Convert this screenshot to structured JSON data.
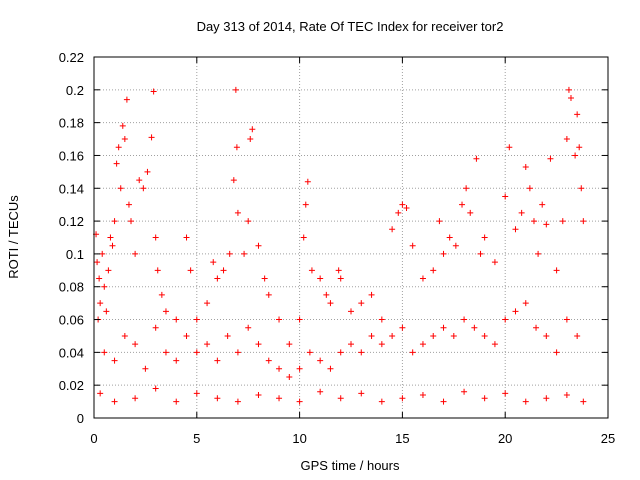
{
  "chart_data": {
    "type": "scatter",
    "title": "Day 313 of 2014, Rate Of TEC Index for receiver tor2",
    "xlabel": "GPS time / hours",
    "ylabel": "ROTI / TECUs",
    "xlim": [
      0,
      25
    ],
    "ylim": [
      0,
      0.22
    ],
    "xticks": [
      "0",
      "5",
      "10",
      "15",
      "20",
      "25"
    ],
    "yticks": [
      "0",
      "0.02",
      "0.04",
      "0.06",
      "0.08",
      "0.1",
      "0.12",
      "0.14",
      "0.16",
      "0.18",
      "0.2",
      "0.22"
    ],
    "grid": true,
    "marker": "plus",
    "color": "#ff0000",
    "series": [
      {
        "points": [
          [
            0.1,
            0.112
          ],
          [
            0.15,
            0.095
          ],
          [
            0.2,
            0.06
          ],
          [
            0.25,
            0.085
          ],
          [
            0.3,
            0.07
          ],
          [
            0.4,
            0.1
          ],
          [
            0.5,
            0.08
          ],
          [
            0.6,
            0.065
          ],
          [
            0.7,
            0.09
          ],
          [
            0.8,
            0.11
          ],
          [
            0.9,
            0.105
          ],
          [
            1.0,
            0.12
          ],
          [
            1.1,
            0.155
          ],
          [
            1.2,
            0.165
          ],
          [
            1.3,
            0.14
          ],
          [
            1.4,
            0.178
          ],
          [
            1.5,
            0.17
          ],
          [
            1.6,
            0.194
          ],
          [
            1.7,
            0.13
          ],
          [
            1.8,
            0.12
          ],
          [
            2.0,
            0.1
          ],
          [
            2.2,
            0.145
          ],
          [
            2.4,
            0.14
          ],
          [
            2.6,
            0.15
          ],
          [
            2.8,
            0.171
          ],
          [
            2.9,
            0.199
          ],
          [
            3.0,
            0.11
          ],
          [
            3.1,
            0.09
          ],
          [
            3.3,
            0.075
          ],
          [
            3.5,
            0.065
          ],
          [
            4.0,
            0.06
          ],
          [
            4.5,
            0.11
          ],
          [
            4.7,
            0.09
          ],
          [
            5.0,
            0.06
          ],
          [
            5.5,
            0.07
          ],
          [
            5.8,
            0.095
          ],
          [
            6.0,
            0.085
          ],
          [
            6.3,
            0.09
          ],
          [
            6.6,
            0.1
          ],
          [
            6.8,
            0.145
          ],
          [
            6.9,
            0.2
          ],
          [
            6.95,
            0.165
          ],
          [
            7.0,
            0.125
          ],
          [
            7.3,
            0.1
          ],
          [
            7.5,
            0.12
          ],
          [
            7.6,
            0.17
          ],
          [
            7.7,
            0.176
          ],
          [
            8.0,
            0.105
          ],
          [
            8.3,
            0.085
          ],
          [
            8.5,
            0.075
          ],
          [
            9.0,
            0.06
          ],
          [
            9.5,
            0.045
          ],
          [
            10.0,
            0.06
          ],
          [
            10.2,
            0.11
          ],
          [
            10.3,
            0.13
          ],
          [
            10.4,
            0.144
          ],
          [
            10.6,
            0.09
          ],
          [
            11.0,
            0.085
          ],
          [
            11.3,
            0.075
          ],
          [
            11.5,
            0.07
          ],
          [
            11.9,
            0.09
          ],
          [
            12.0,
            0.085
          ],
          [
            12.5,
            0.065
          ],
          [
            13.0,
            0.07
          ],
          [
            13.5,
            0.075
          ],
          [
            14.0,
            0.06
          ],
          [
            14.5,
            0.115
          ],
          [
            14.8,
            0.125
          ],
          [
            15.0,
            0.13
          ],
          [
            15.2,
            0.128
          ],
          [
            15.5,
            0.105
          ],
          [
            16.0,
            0.085
          ],
          [
            16.5,
            0.09
          ],
          [
            16.8,
            0.12
          ],
          [
            17.0,
            0.1
          ],
          [
            17.3,
            0.11
          ],
          [
            17.6,
            0.105
          ],
          [
            17.9,
            0.13
          ],
          [
            18.1,
            0.14
          ],
          [
            18.3,
            0.125
          ],
          [
            18.6,
            0.158
          ],
          [
            18.8,
            0.1
          ],
          [
            19.0,
            0.11
          ],
          [
            19.5,
            0.095
          ],
          [
            20.0,
            0.135
          ],
          [
            20.2,
            0.165
          ],
          [
            20.5,
            0.115
          ],
          [
            20.8,
            0.125
          ],
          [
            21.0,
            0.153
          ],
          [
            21.2,
            0.14
          ],
          [
            21.4,
            0.12
          ],
          [
            21.6,
            0.1
          ],
          [
            21.8,
            0.13
          ],
          [
            22.0,
            0.118
          ],
          [
            22.2,
            0.158
          ],
          [
            22.5,
            0.09
          ],
          [
            22.8,
            0.12
          ],
          [
            23.0,
            0.17
          ],
          [
            23.1,
            0.2
          ],
          [
            23.2,
            0.195
          ],
          [
            23.4,
            0.16
          ],
          [
            23.5,
            0.185
          ],
          [
            23.6,
            0.165
          ],
          [
            23.7,
            0.14
          ],
          [
            23.8,
            0.12
          ],
          [
            0.5,
            0.04
          ],
          [
            1.0,
            0.035
          ],
          [
            1.5,
            0.05
          ],
          [
            2.0,
            0.045
          ],
          [
            2.5,
            0.03
          ],
          [
            3.0,
            0.055
          ],
          [
            3.5,
            0.04
          ],
          [
            4.0,
            0.035
          ],
          [
            4.5,
            0.05
          ],
          [
            5.0,
            0.04
          ],
          [
            5.5,
            0.045
          ],
          [
            6.0,
            0.035
          ],
          [
            6.5,
            0.05
          ],
          [
            7.0,
            0.04
          ],
          [
            7.5,
            0.055
          ],
          [
            8.0,
            0.045
          ],
          [
            8.5,
            0.035
          ],
          [
            9.0,
            0.03
          ],
          [
            9.5,
            0.025
          ],
          [
            10.0,
            0.03
          ],
          [
            10.5,
            0.04
          ],
          [
            11.0,
            0.035
          ],
          [
            11.5,
            0.03
          ],
          [
            12.0,
            0.04
          ],
          [
            12.5,
            0.045
          ],
          [
            13.0,
            0.04
          ],
          [
            13.5,
            0.05
          ],
          [
            14.0,
            0.045
          ],
          [
            14.5,
            0.05
          ],
          [
            15.0,
            0.055
          ],
          [
            15.5,
            0.04
          ],
          [
            16.0,
            0.045
          ],
          [
            16.5,
            0.05
          ],
          [
            17.0,
            0.055
          ],
          [
            17.5,
            0.05
          ],
          [
            18.0,
            0.06
          ],
          [
            18.5,
            0.055
          ],
          [
            19.0,
            0.05
          ],
          [
            19.5,
            0.045
          ],
          [
            20.0,
            0.06
          ],
          [
            20.5,
            0.065
          ],
          [
            21.0,
            0.07
          ],
          [
            21.5,
            0.055
          ],
          [
            22.0,
            0.05
          ],
          [
            22.5,
            0.04
          ],
          [
            23.0,
            0.06
          ],
          [
            23.5,
            0.05
          ],
          [
            0.3,
            0.015
          ],
          [
            1.0,
            0.01
          ],
          [
            2.0,
            0.012
          ],
          [
            3.0,
            0.018
          ],
          [
            4.0,
            0.01
          ],
          [
            5.0,
            0.015
          ],
          [
            6.0,
            0.012
          ],
          [
            7.0,
            0.01
          ],
          [
            8.0,
            0.014
          ],
          [
            9.0,
            0.012
          ],
          [
            10.0,
            0.01
          ],
          [
            11.0,
            0.016
          ],
          [
            12.0,
            0.012
          ],
          [
            13.0,
            0.015
          ],
          [
            14.0,
            0.01
          ],
          [
            15.0,
            0.012
          ],
          [
            16.0,
            0.014
          ],
          [
            17.0,
            0.01
          ],
          [
            18.0,
            0.016
          ],
          [
            19.0,
            0.012
          ],
          [
            20.0,
            0.015
          ],
          [
            21.0,
            0.01
          ],
          [
            22.0,
            0.012
          ],
          [
            23.0,
            0.014
          ],
          [
            23.8,
            0.01
          ]
        ]
      }
    ]
  }
}
